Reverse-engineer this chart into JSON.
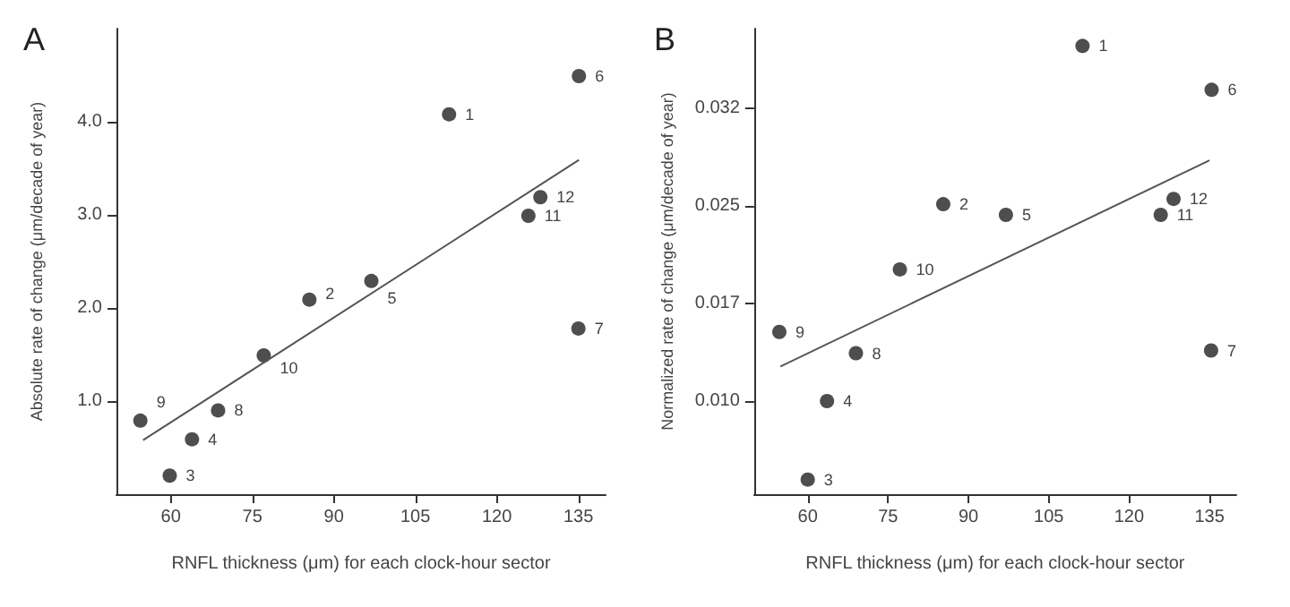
{
  "chart_data": [
    {
      "type": "scatter",
      "title": "A",
      "xlabel": "RNFL thickness (μm) for each clock-hour sector",
      "ylabel": "Absolute rate of change (μm/decade of year)",
      "xlim": [
        50,
        140
      ],
      "xticks": [
        60,
        75,
        90,
        105,
        120,
        135
      ],
      "ylim": [
        0,
        5
      ],
      "yticks": [
        {
          "value": 1,
          "label": "1.0"
        },
        {
          "value": 2,
          "label": "2.0"
        },
        {
          "value": 3,
          "label": "3.0"
        },
        {
          "value": 4,
          "label": "4.0"
        }
      ],
      "grid": false,
      "series": [
        {
          "type": "scatter",
          "color": "#222222",
          "marker": "circle",
          "x": [
            111.2,
            85.5,
            59.8,
            63.9,
            96.9,
            135.1,
            135.0,
            68.7,
            54.4,
            77.1,
            125.8,
            128.0
          ],
          "values": [
            4.08,
            2.09,
            0.2,
            0.59,
            2.29,
            4.49,
            1.78,
            0.9,
            0.79,
            1.49,
            2.99,
            3.19
          ]
        },
        {
          "type": "line",
          "color": "#555555",
          "marker": "none",
          "x": [
            54.9,
            135.1
          ],
          "values": [
            0.58,
            3.59
          ]
        }
      ],
      "annotations": [
        {
          "text": "1",
          "x": 111.2,
          "y": 4.08
        },
        {
          "text": "2",
          "x": 85.5,
          "y": 2.09
        },
        {
          "text": "3",
          "x": 59.8,
          "y": 0.2
        },
        {
          "text": "4",
          "x": 63.9,
          "y": 0.59
        },
        {
          "text": "5",
          "x": 96.9,
          "y": 2.29
        },
        {
          "text": "6",
          "x": 135.1,
          "y": 4.49
        },
        {
          "text": "7",
          "x": 135.0,
          "y": 1.78
        },
        {
          "text": "8",
          "x": 68.7,
          "y": 0.9
        },
        {
          "text": "9",
          "x": 54.4,
          "y": 0.79
        },
        {
          "text": "10",
          "x": 77.1,
          "y": 1.49
        },
        {
          "text": "11",
          "x": 125.8,
          "y": 2.99
        },
        {
          "text": "12",
          "x": 128.0,
          "y": 3.19
        }
      ]
    },
    {
      "type": "scatter",
      "title": "B",
      "xlabel": "RNFL thickness (μm) for each clock-hour sector",
      "ylabel": "Normalized rate of change (μm/decade of year)",
      "xlim": [
        50,
        140
      ],
      "xticks": [
        60,
        75,
        90,
        105,
        120,
        135
      ],
      "ylim": [
        0.003,
        0.038
      ],
      "yticks": [
        {
          "value": 0.01,
          "label": "0.010"
        },
        {
          "value": 0.017333,
          "label": "0.017"
        },
        {
          "value": 0.024667,
          "label": "0.025"
        },
        {
          "value": 0.032,
          "label": "0.032"
        }
      ],
      "grid": false,
      "series": [
        {
          "type": "scatter",
          "color": "#222222",
          "marker": "circle",
          "x": [
            111.3,
            85.3,
            60.0,
            63.6,
            97.0,
            135.4,
            135.3,
            69.0,
            54.7,
            77.2,
            125.9,
            128.3
          ],
          "values": [
            0.0367,
            0.0248,
            0.0041,
            0.01,
            0.024,
            0.0334,
            0.0138,
            0.0136,
            0.0152,
            0.0199,
            0.024,
            0.0252
          ]
        },
        {
          "type": "line",
          "color": "#555555",
          "marker": "none",
          "x": [
            54.9,
            135
          ],
          "values": [
            0.0126,
            0.0281
          ]
        }
      ],
      "annotations": [
        {
          "text": "1",
          "x": 111.3,
          "y": 0.0367
        },
        {
          "text": "2",
          "x": 85.3,
          "y": 0.0248
        },
        {
          "text": "3",
          "x": 60.0,
          "y": 0.0041
        },
        {
          "text": "4",
          "x": 63.6,
          "y": 0.01
        },
        {
          "text": "5",
          "x": 97.0,
          "y": 0.024
        },
        {
          "text": "6",
          "x": 135.4,
          "y": 0.0334
        },
        {
          "text": "7",
          "x": 135.3,
          "y": 0.0138
        },
        {
          "text": "8",
          "x": 69.0,
          "y": 0.0136
        },
        {
          "text": "9",
          "x": 54.7,
          "y": 0.0152
        },
        {
          "text": "10",
          "x": 77.2,
          "y": 0.0199
        },
        {
          "text": "11",
          "x": 125.9,
          "y": 0.024
        },
        {
          "text": "12",
          "x": 128.3,
          "y": 0.0252
        }
      ]
    }
  ]
}
